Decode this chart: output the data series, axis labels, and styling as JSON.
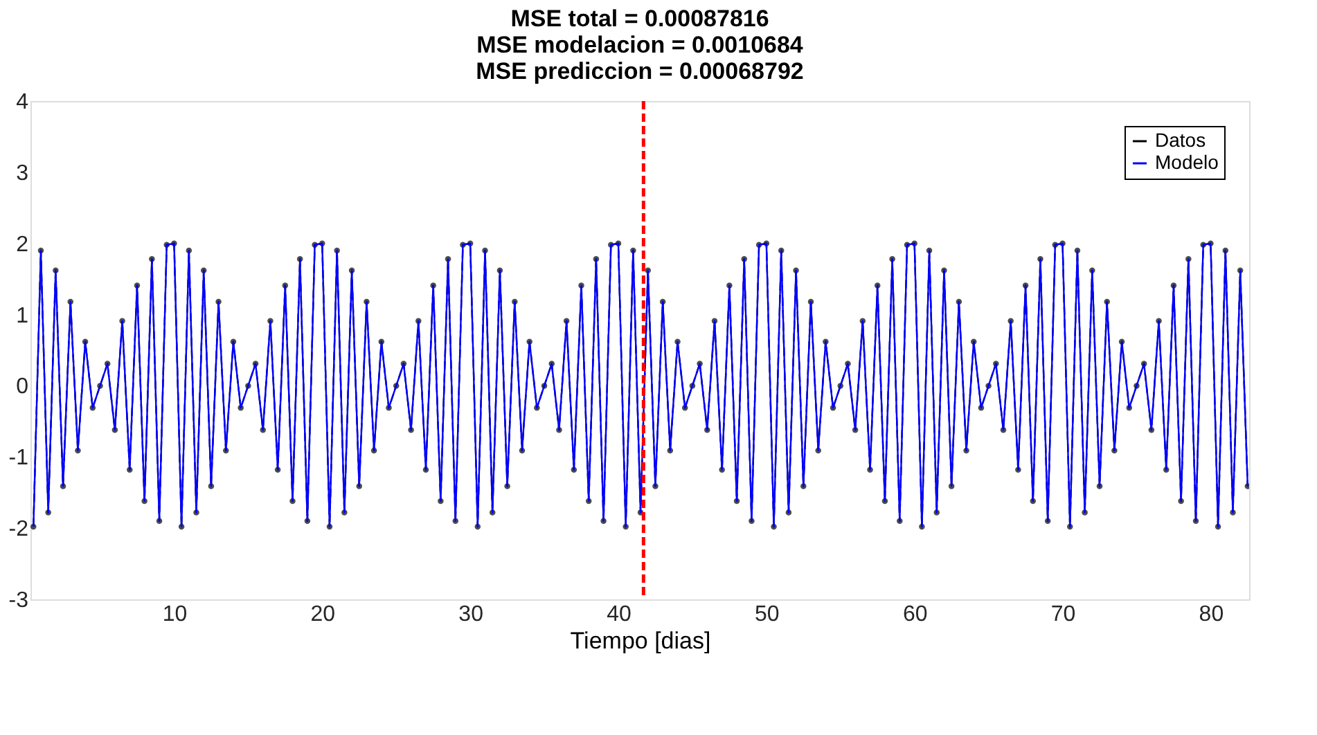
{
  "chart_data": {
    "type": "line",
    "title": [
      "MSE total = 0.00087816",
      "MSE modelacion = 0.0010684",
      "MSE prediccion = 0.00068792"
    ],
    "xlabel": "Tiempo [dias]",
    "x": [
      0.5,
      1,
      1.5,
      2,
      2.5,
      3,
      3.5,
      4,
      4.5,
      5,
      5.5,
      6,
      6.5,
      7,
      7.5,
      8,
      8.5,
      9,
      9.5,
      10,
      10.5,
      11,
      11.5,
      12,
      12.5,
      13,
      13.5,
      14,
      14.5,
      15,
      15.5,
      16,
      16.5,
      17,
      17.5,
      18,
      18.5,
      19,
      19.5,
      20,
      20.5,
      21,
      21.5,
      22,
      22.5,
      23,
      23.5,
      24,
      24.5,
      25,
      25.5,
      26,
      26.5,
      27,
      27.5,
      28,
      28.5,
      29,
      29.5,
      30,
      30.5,
      31,
      31.5,
      32,
      32.5,
      33,
      33.5,
      34,
      34.5,
      35,
      35.5,
      36,
      36.5,
      37,
      37.5,
      38,
      38.5,
      39,
      39.5,
      40,
      40.5,
      41,
      41.5,
      42,
      42.5,
      43,
      43.5,
      44,
      44.5,
      45,
      45.5,
      46,
      46.5,
      47,
      47.5,
      48,
      48.5,
      49,
      49.5,
      50,
      50.5,
      51,
      51.5,
      52,
      52.5,
      53,
      53.5,
      54,
      54.5,
      55,
      55.5,
      56,
      56.5,
      57,
      57.5,
      58,
      58.5,
      59,
      59.5,
      60,
      60.5,
      61,
      61.5,
      62,
      62.5,
      63,
      63.5,
      64,
      64.5,
      65,
      65.5,
      66,
      66.5,
      67,
      67.5,
      68,
      68.5,
      69,
      69.5,
      70,
      70.5,
      71,
      71.5,
      72,
      72.5,
      73,
      73.5,
      74,
      74.5,
      75,
      75.5,
      76,
      76.5,
      77,
      77.5,
      78,
      78.5,
      79,
      79.5,
      80,
      80.5,
      81,
      81.5,
      82,
      82.5
    ],
    "series": [
      {
        "name": "Datos",
        "color": "#000000",
        "line_style": "dashed",
        "marker": "circle",
        "values": [
          -1.98,
          1.9,
          -1.78,
          1.62,
          -1.41,
          1.18,
          -0.91,
          0.62,
          -0.31,
          0,
          0.31,
          -0.62,
          0.91,
          -1.18,
          1.41,
          -1.62,
          1.78,
          -1.9,
          1.98,
          2,
          -1.98,
          1.9,
          -1.78,
          1.62,
          -1.41,
          1.18,
          -0.91,
          0.62,
          -0.31,
          0,
          0.31,
          -0.62,
          0.91,
          -1.18,
          1.41,
          -1.62,
          1.78,
          -1.9,
          1.98,
          2,
          -1.98,
          1.9,
          -1.78,
          1.62,
          -1.41,
          1.18,
          -0.91,
          0.62,
          -0.31,
          0,
          0.31,
          -0.62,
          0.91,
          -1.18,
          1.41,
          -1.62,
          1.78,
          -1.9,
          1.98,
          2,
          -1.98,
          1.9,
          -1.78,
          1.62,
          -1.41,
          1.18,
          -0.91,
          0.62,
          -0.31,
          0,
          0.31,
          -0.62,
          0.91,
          -1.18,
          1.41,
          -1.62,
          1.78,
          -1.9,
          1.98,
          2,
          -1.98,
          1.9,
          -1.78,
          1.62,
          -1.41,
          1.18,
          -0.91,
          0.62,
          -0.31,
          0,
          0.31,
          -0.62,
          0.91,
          -1.18,
          1.41,
          -1.62,
          1.78,
          -1.9,
          1.98,
          2,
          -1.98,
          1.9,
          -1.78,
          1.62,
          -1.41,
          1.18,
          -0.91,
          0.62,
          -0.31,
          0,
          0.31,
          -0.62,
          0.91,
          -1.18,
          1.41,
          -1.62,
          1.78,
          -1.9,
          1.98,
          2,
          -1.98,
          1.9,
          -1.78,
          1.62,
          -1.41,
          1.18,
          -0.91,
          0.62,
          -0.31,
          0,
          0.31,
          -0.62,
          0.91,
          -1.18,
          1.41,
          -1.62,
          1.78,
          -1.9,
          1.98,
          2,
          -1.98,
          1.9,
          -1.78,
          1.62,
          -1.41,
          1.18,
          -0.91,
          0.62,
          -0.31,
          0,
          0.31,
          -0.62,
          0.91,
          -1.18,
          1.41,
          -1.62,
          1.78,
          -1.9,
          1.98,
          2,
          -1.98,
          1.9,
          -1.78,
          1.62,
          -1.41
        ]
      },
      {
        "name": "Modelo",
        "color": "#0000ff",
        "line_style": "solid",
        "values": [
          -1.98,
          1.9,
          -1.78,
          1.62,
          -1.41,
          1.18,
          -0.91,
          0.62,
          -0.31,
          0,
          0.31,
          -0.62,
          0.91,
          -1.18,
          1.41,
          -1.62,
          1.78,
          -1.9,
          1.98,
          2,
          -1.98,
          1.9,
          -1.78,
          1.62,
          -1.41,
          1.18,
          -0.91,
          0.62,
          -0.31,
          0,
          0.31,
          -0.62,
          0.91,
          -1.18,
          1.41,
          -1.62,
          1.78,
          -1.9,
          1.98,
          2,
          -1.98,
          1.9,
          -1.78,
          1.62,
          -1.41,
          1.18,
          -0.91,
          0.62,
          -0.31,
          0,
          0.31,
          -0.62,
          0.91,
          -1.18,
          1.41,
          -1.62,
          1.78,
          -1.9,
          1.98,
          2,
          -1.98,
          1.9,
          -1.78,
          1.62,
          -1.41,
          1.18,
          -0.91,
          0.62,
          -0.31,
          0,
          0.31,
          -0.62,
          0.91,
          -1.18,
          1.41,
          -1.62,
          1.78,
          -1.9,
          1.98,
          2,
          -1.98,
          1.9,
          -1.78,
          1.62,
          -1.41,
          1.18,
          -0.91,
          0.62,
          -0.31,
          0,
          0.31,
          -0.62,
          0.91,
          -1.18,
          1.41,
          -1.62,
          1.78,
          -1.9,
          1.98,
          2,
          -1.98,
          1.9,
          -1.78,
          1.62,
          -1.41,
          1.18,
          -0.91,
          0.62,
          -0.31,
          0,
          0.31,
          -0.62,
          0.91,
          -1.18,
          1.41,
          -1.62,
          1.78,
          -1.9,
          1.98,
          2,
          -1.98,
          1.9,
          -1.78,
          1.62,
          -1.41,
          1.18,
          -0.91,
          0.62,
          -0.31,
          0,
          0.31,
          -0.62,
          0.91,
          -1.18,
          1.41,
          -1.62,
          1.78,
          -1.9,
          1.98,
          2,
          -1.98,
          1.9,
          -1.78,
          1.62,
          -1.41,
          1.18,
          -0.91,
          0.62,
          -0.31,
          0,
          0.31,
          -0.62,
          0.91,
          -1.18,
          1.41,
          -1.62,
          1.78,
          -1.9,
          1.98,
          2,
          -1.98,
          1.9,
          -1.78,
          1.62,
          -1.41
        ]
      }
    ],
    "xlim": [
      0.3,
      82.6
    ],
    "xticks": [
      10,
      20,
      30,
      40,
      50,
      60,
      70,
      80
    ],
    "ylim": [
      -3,
      4
    ],
    "yticks": [
      -3,
      -2,
      -1,
      0,
      1,
      2,
      3,
      4
    ],
    "ref_lines": [
      {
        "axis": "x",
        "value": 41.7,
        "color": "#ff0000",
        "line_style": "dashed"
      }
    ],
    "legend": "top right",
    "grid": false
  }
}
